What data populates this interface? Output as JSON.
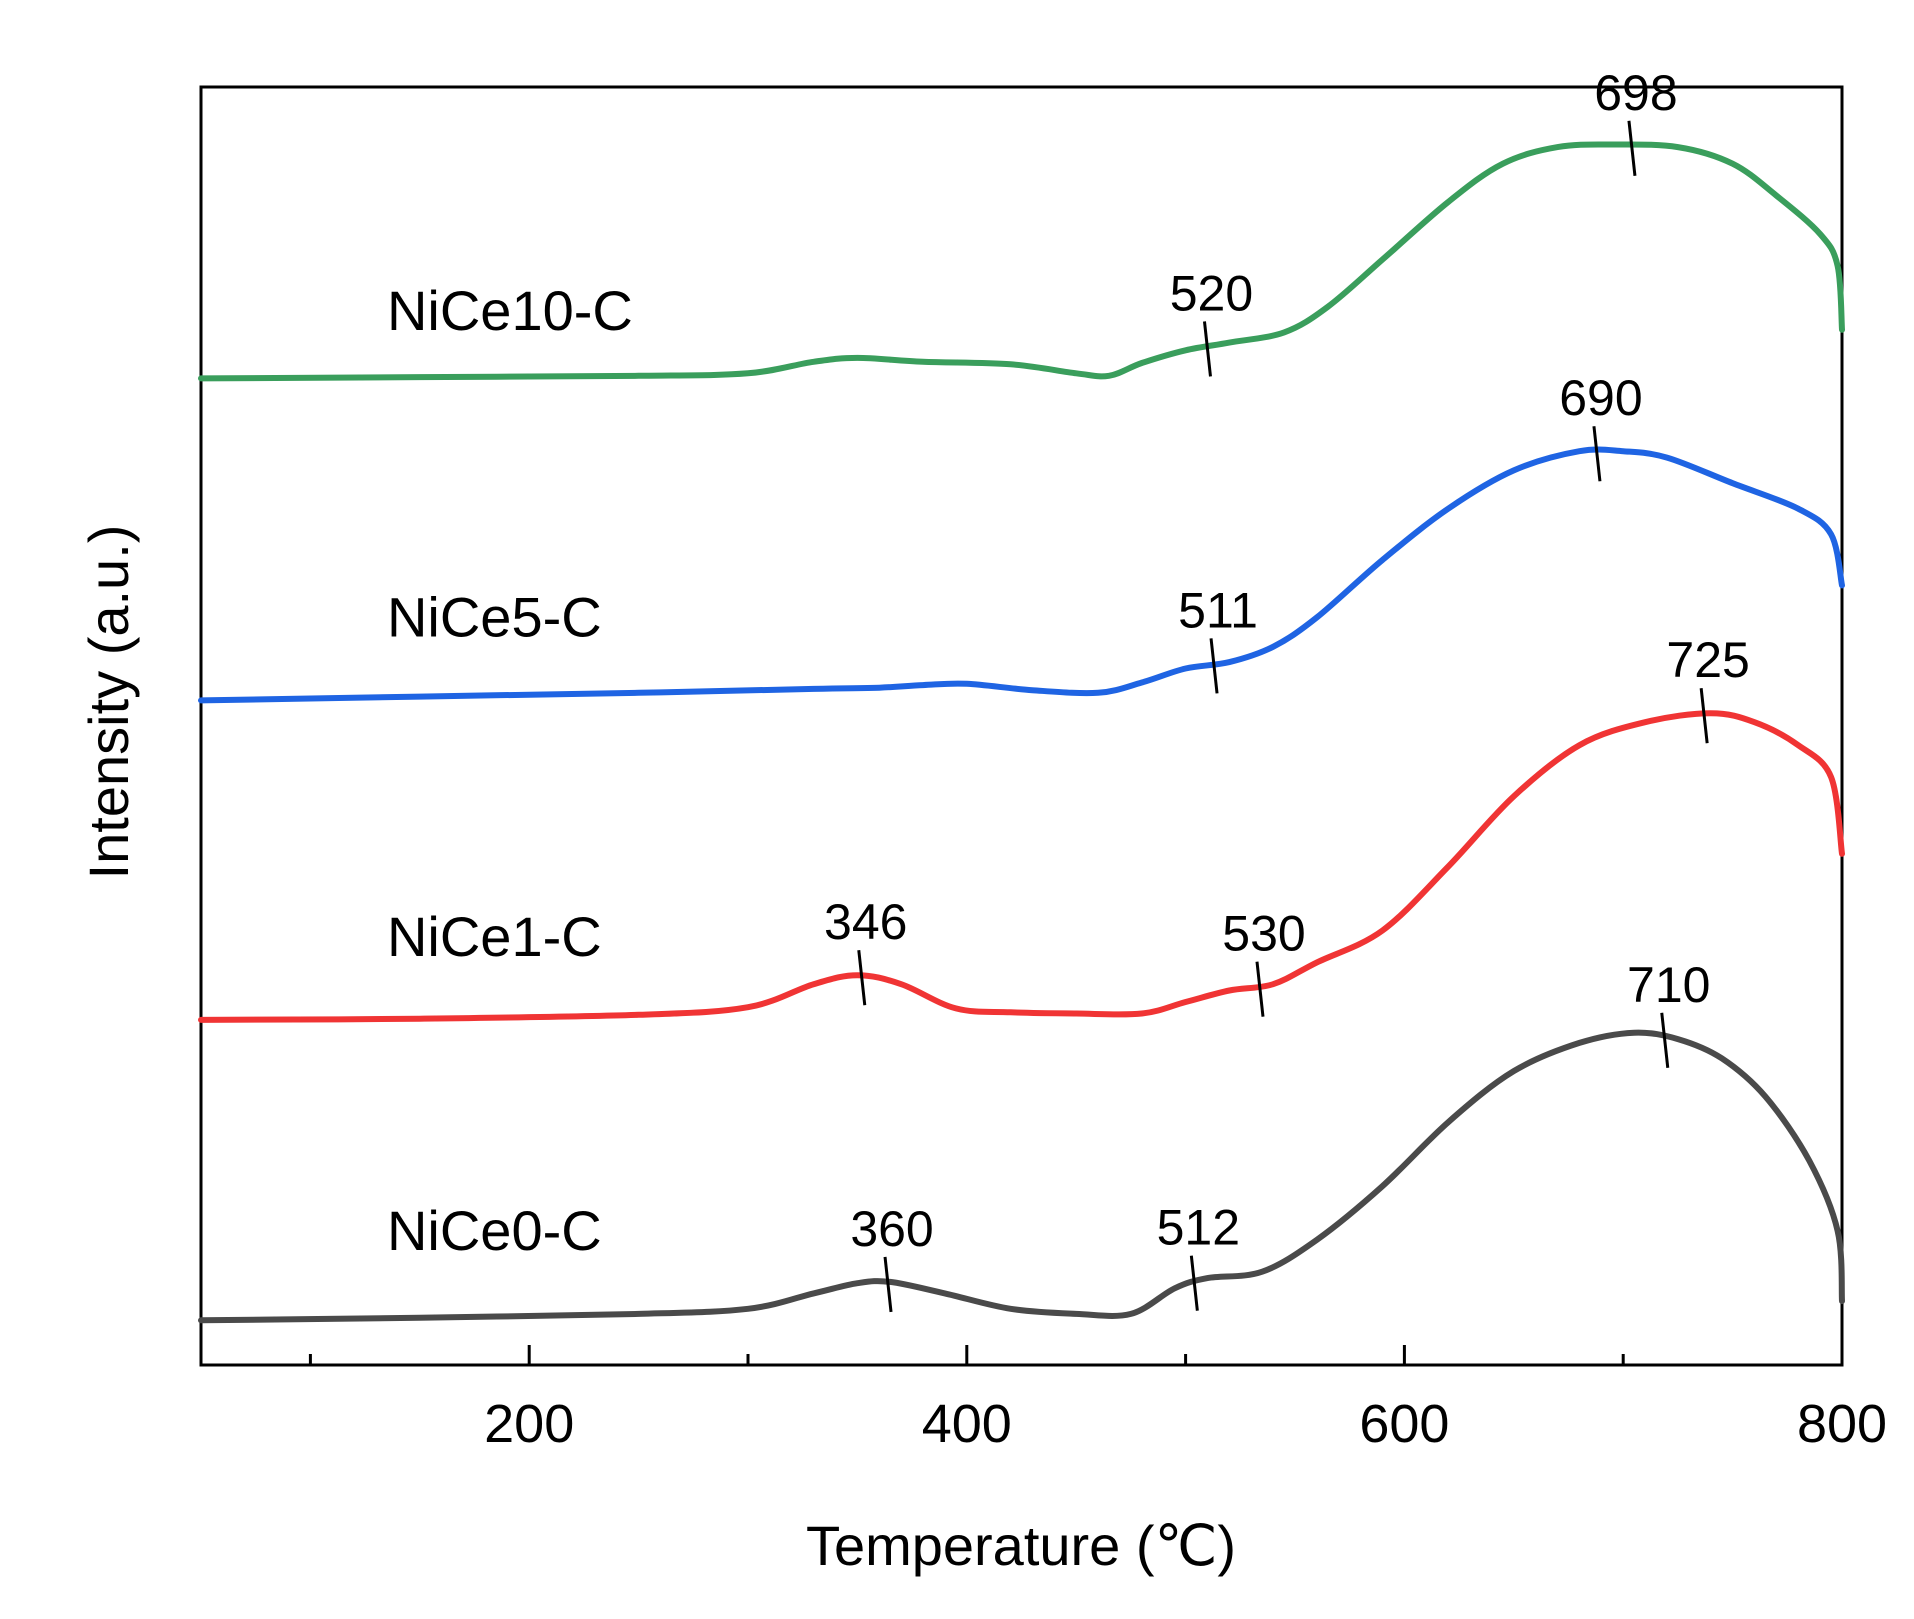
{
  "chart_data": {
    "type": "line",
    "title": "",
    "xlabel": "Temperature (℃)",
    "ylabel": "Intensity (a.u.)",
    "xlim": [
      50,
      800
    ],
    "ylim": [
      0,
      100
    ],
    "x_ticks": [
      200,
      400,
      600,
      800
    ],
    "x_minor_ticks": [
      100,
      300,
      500,
      700
    ],
    "grid": false,
    "legend": "none",
    "series": [
      {
        "name": "NiCe0-C",
        "color": "#4a4a4a",
        "label_x": 135,
        "label_y": 9,
        "points": [
          [
            50,
            3.5
          ],
          [
            150,
            3.7
          ],
          [
            250,
            4.0
          ],
          [
            300,
            4.4
          ],
          [
            330,
            5.6
          ],
          [
            350,
            6.4
          ],
          [
            365,
            6.5
          ],
          [
            390,
            5.6
          ],
          [
            420,
            4.4
          ],
          [
            450,
            4.0
          ],
          [
            475,
            4.0
          ],
          [
            495,
            6.0
          ],
          [
            510,
            6.8
          ],
          [
            535,
            7.3
          ],
          [
            560,
            9.8
          ],
          [
            590,
            14.0
          ],
          [
            620,
            19.0
          ],
          [
            650,
            23.0
          ],
          [
            680,
            25.2
          ],
          [
            705,
            26.0
          ],
          [
            725,
            25.5
          ],
          [
            745,
            24.0
          ],
          [
            765,
            21.0
          ],
          [
            785,
            16.0
          ],
          [
            798,
            10.5
          ],
          [
            800,
            5.0
          ]
        ],
        "annotations": [
          {
            "label": "360",
            "x": 364,
            "y": 6.5
          },
          {
            "label": "512",
            "x": 504,
            "y": 6.6
          },
          {
            "label": "710",
            "x": 719,
            "y": 25.6
          }
        ]
      },
      {
        "name": "NiCe1-C",
        "color": "#f03434",
        "label_x": 135,
        "label_y": 32,
        "points": [
          [
            50,
            27.0
          ],
          [
            150,
            27.1
          ],
          [
            250,
            27.4
          ],
          [
            300,
            28.0
          ],
          [
            330,
            29.8
          ],
          [
            350,
            30.5
          ],
          [
            370,
            29.8
          ],
          [
            395,
            27.9
          ],
          [
            420,
            27.6
          ],
          [
            450,
            27.5
          ],
          [
            480,
            27.5
          ],
          [
            500,
            28.4
          ],
          [
            520,
            29.3
          ],
          [
            540,
            29.8
          ],
          [
            560,
            31.5
          ],
          [
            590,
            34.0
          ],
          [
            620,
            39.0
          ],
          [
            650,
            44.5
          ],
          [
            680,
            48.5
          ],
          [
            710,
            50.3
          ],
          [
            740,
            51.0
          ],
          [
            760,
            50.3
          ],
          [
            780,
            48.5
          ],
          [
            795,
            46.0
          ],
          [
            800,
            40.0
          ]
        ],
        "annotations": [
          {
            "label": "346",
            "x": 352,
            "y": 30.5
          },
          {
            "label": "530",
            "x": 534,
            "y": 29.6
          },
          {
            "label": "725",
            "x": 737,
            "y": 51.0
          }
        ]
      },
      {
        "name": "NiCe5-C",
        "color": "#1f64e3",
        "label_x": 135,
        "label_y": 57,
        "points": [
          [
            50,
            52.0
          ],
          [
            150,
            52.3
          ],
          [
            250,
            52.6
          ],
          [
            330,
            52.9
          ],
          [
            360,
            53.0
          ],
          [
            380,
            53.2
          ],
          [
            400,
            53.3
          ],
          [
            430,
            52.8
          ],
          [
            460,
            52.6
          ],
          [
            480,
            53.4
          ],
          [
            500,
            54.5
          ],
          [
            520,
            55.0
          ],
          [
            540,
            56.2
          ],
          [
            560,
            58.5
          ],
          [
            590,
            63.0
          ],
          [
            620,
            67.0
          ],
          [
            650,
            70.0
          ],
          [
            680,
            71.5
          ],
          [
            700,
            71.5
          ],
          [
            720,
            71.0
          ],
          [
            750,
            69.0
          ],
          [
            780,
            67.0
          ],
          [
            795,
            65.0
          ],
          [
            800,
            61.0
          ]
        ],
        "annotations": [
          {
            "label": "511",
            "x": 513,
            "y": 54.9
          },
          {
            "label": "690",
            "x": 688,
            "y": 71.5
          }
        ]
      },
      {
        "name": "NiCe10-C",
        "color": "#3a9e5c",
        "label_x": 135,
        "label_y": 81,
        "points": [
          [
            50,
            77.2
          ],
          [
            150,
            77.3
          ],
          [
            250,
            77.4
          ],
          [
            300,
            77.6
          ],
          [
            330,
            78.5
          ],
          [
            350,
            78.8
          ],
          [
            380,
            78.5
          ],
          [
            420,
            78.3
          ],
          [
            450,
            77.6
          ],
          [
            465,
            77.4
          ],
          [
            480,
            78.4
          ],
          [
            500,
            79.4
          ],
          [
            520,
            80.0
          ],
          [
            545,
            80.8
          ],
          [
            565,
            82.8
          ],
          [
            590,
            86.5
          ],
          [
            620,
            91.0
          ],
          [
            645,
            94.0
          ],
          [
            670,
            95.3
          ],
          [
            695,
            95.5
          ],
          [
            725,
            95.3
          ],
          [
            750,
            94.0
          ],
          [
            770,
            91.5
          ],
          [
            790,
            88.5
          ],
          [
            798,
            86.0
          ],
          [
            800,
            81.0
          ]
        ],
        "annotations": [
          {
            "label": "520",
            "x": 510,
            "y": 79.7
          },
          {
            "label": "698",
            "x": 704,
            "y": 95.4
          }
        ]
      }
    ]
  }
}
